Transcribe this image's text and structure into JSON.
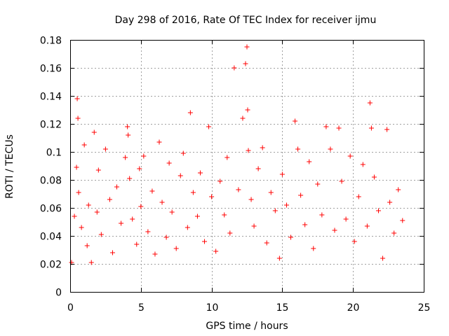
{
  "chart_data": {
    "type": "scatter",
    "title": "Day 298 of 2016, Rate Of TEC Index for receiver ijmu",
    "xlabel": "GPS time / hours",
    "ylabel": "ROTI / TECUs",
    "xlim": [
      0,
      25
    ],
    "ylim": [
      0,
      0.18
    ],
    "x_ticks": [
      0,
      5,
      10,
      15,
      20,
      25
    ],
    "x_tick_labels": [
      "0",
      "5",
      "10",
      "15",
      "20",
      "25"
    ],
    "y_ticks": [
      0,
      0.02,
      0.04,
      0.06,
      0.08,
      0.1,
      0.12,
      0.14,
      0.16,
      0.18
    ],
    "y_tick_labels": [
      "0",
      "0.02",
      "0.04",
      "0.06",
      "0.08",
      "0.1",
      "0.12",
      "0.14",
      "0.16",
      "0.18"
    ],
    "grid": true,
    "marker": "plus",
    "color": "#ff0000",
    "series": [
      {
        "name": "ROTI",
        "x": [
          0.1,
          0.3,
          0.45,
          0.5,
          0.55,
          0.6,
          0.8,
          1.0,
          1.2,
          1.3,
          1.5,
          1.7,
          1.9,
          2.0,
          2.2,
          2.5,
          2.8,
          3.0,
          3.3,
          3.6,
          3.9,
          4.05,
          4.1,
          4.2,
          4.4,
          4.7,
          4.9,
          5.0,
          5.2,
          5.5,
          5.8,
          6.0,
          6.3,
          6.5,
          6.8,
          7.0,
          7.2,
          7.5,
          7.8,
          8.0,
          8.3,
          8.5,
          8.7,
          9.0,
          9.2,
          9.5,
          9.8,
          10.0,
          10.3,
          10.6,
          10.9,
          11.1,
          11.3,
          11.6,
          11.9,
          12.2,
          12.4,
          12.5,
          12.55,
          12.6,
          12.8,
          13.0,
          13.3,
          13.6,
          13.9,
          14.2,
          14.5,
          14.8,
          15.0,
          15.3,
          15.6,
          15.9,
          16.1,
          16.3,
          16.6,
          16.9,
          17.2,
          17.5,
          17.8,
          18.1,
          18.4,
          18.7,
          19.0,
          19.2,
          19.5,
          19.8,
          20.1,
          20.4,
          20.7,
          21.0,
          21.2,
          21.3,
          21.5,
          21.8,
          22.1,
          22.4,
          22.6,
          22.9,
          23.2,
          23.5
        ],
        "y": [
          0.021,
          0.054,
          0.089,
          0.138,
          0.124,
          0.071,
          0.046,
          0.105,
          0.033,
          0.062,
          0.021,
          0.114,
          0.057,
          0.087,
          0.041,
          0.102,
          0.066,
          0.028,
          0.075,
          0.049,
          0.096,
          0.118,
          0.112,
          0.081,
          0.052,
          0.034,
          0.088,
          0.061,
          0.097,
          0.043,
          0.072,
          0.027,
          0.107,
          0.064,
          0.039,
          0.092,
          0.057,
          0.031,
          0.083,
          0.099,
          0.046,
          0.128,
          0.071,
          0.054,
          0.085,
          0.036,
          0.118,
          0.068,
          0.029,
          0.079,
          0.055,
          0.096,
          0.042,
          0.16,
          0.073,
          0.124,
          0.163,
          0.175,
          0.13,
          0.101,
          0.066,
          0.047,
          0.088,
          0.103,
          0.035,
          0.071,
          0.058,
          0.024,
          0.084,
          0.062,
          0.039,
          0.122,
          0.102,
          0.069,
          0.048,
          0.093,
          0.031,
          0.077,
          0.055,
          0.118,
          0.102,
          0.044,
          0.117,
          0.079,
          0.052,
          0.097,
          0.036,
          0.068,
          0.091,
          0.047,
          0.135,
          0.117,
          0.082,
          0.058,
          0.024,
          0.116,
          0.064,
          0.042,
          0.073,
          0.051
        ]
      }
    ]
  }
}
